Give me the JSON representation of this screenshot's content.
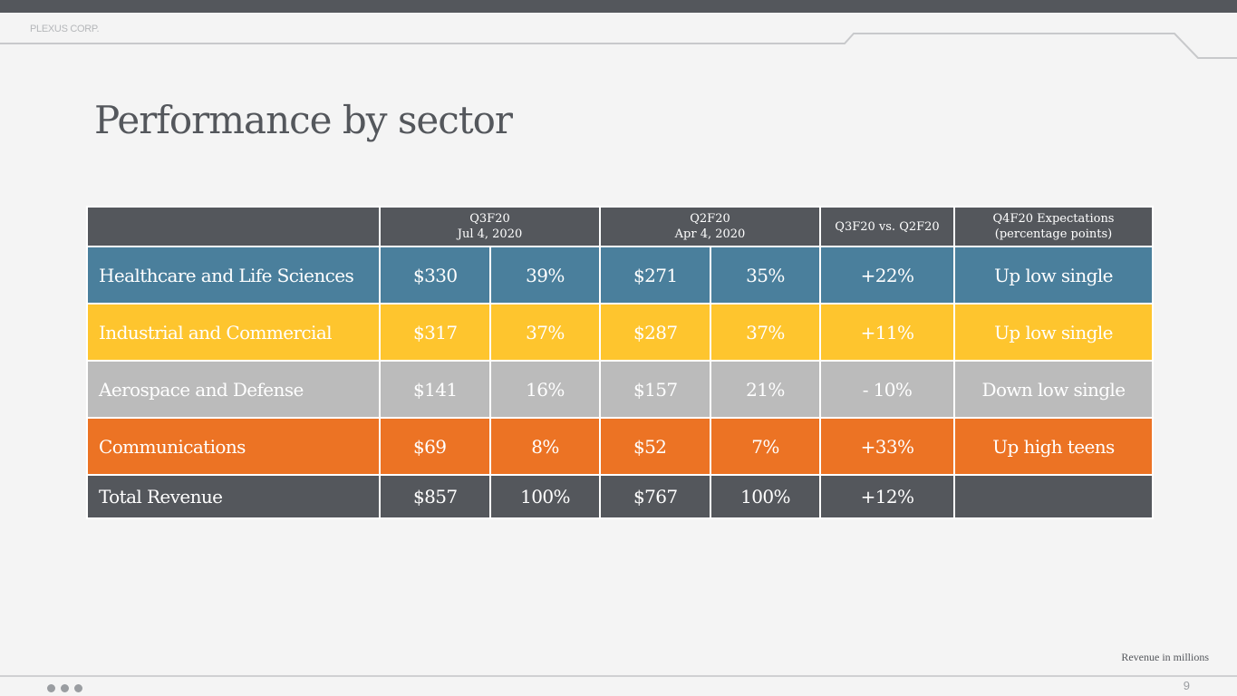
{
  "brand": "PLEXUS CORP.",
  "title": "Performance by sector",
  "table": {
    "header": {
      "q3_line1": "Q3F20",
      "q3_line2": "Jul 4, 2020",
      "q2_line1": "Q2F20",
      "q2_line2": "Apr 4, 2020",
      "change": "Q3F20 vs. Q2F20",
      "exp_line1": "Q4F20 Expectations",
      "exp_line2": "(percentage points)"
    },
    "rows": [
      {
        "sector": "Healthcare and Life Sciences",
        "q3_rev": "$330",
        "q3_pct": "39%",
        "q2_rev": "$271",
        "q2_pct": "35%",
        "change": "+22%",
        "expectation": "Up low single"
      },
      {
        "sector": "Industrial and Commercial",
        "q3_rev": "$317",
        "q3_pct": "37%",
        "q2_rev": "$287",
        "q2_pct": "37%",
        "change": "+11%",
        "expectation": "Up low single"
      },
      {
        "sector": "Aerospace and Defense",
        "q3_rev": "$141",
        "q3_pct": "16%",
        "q2_rev": "$157",
        "q2_pct": "21%",
        "change": "- 10%",
        "expectation": "Down low single"
      },
      {
        "sector": "Communications",
        "q3_rev": "$69",
        "q3_pct": "8%",
        "q2_rev": "$52",
        "q2_pct": "7%",
        "change": "+33%",
        "expectation": "Up high teens"
      },
      {
        "sector": "Total Revenue",
        "q3_rev": "$857",
        "q3_pct": "100%",
        "q2_rev": "$767",
        "q2_pct": "100%",
        "change": "+12%",
        "expectation": ""
      }
    ]
  },
  "colors": {
    "dark_gray": "#54575c",
    "healthcare": "#4a7f9c",
    "industrial": "#fec52e",
    "aerospace": "#bbbbbb",
    "communications": "#ec7324"
  },
  "footnote": "Revenue in millions",
  "page_number": "9"
}
